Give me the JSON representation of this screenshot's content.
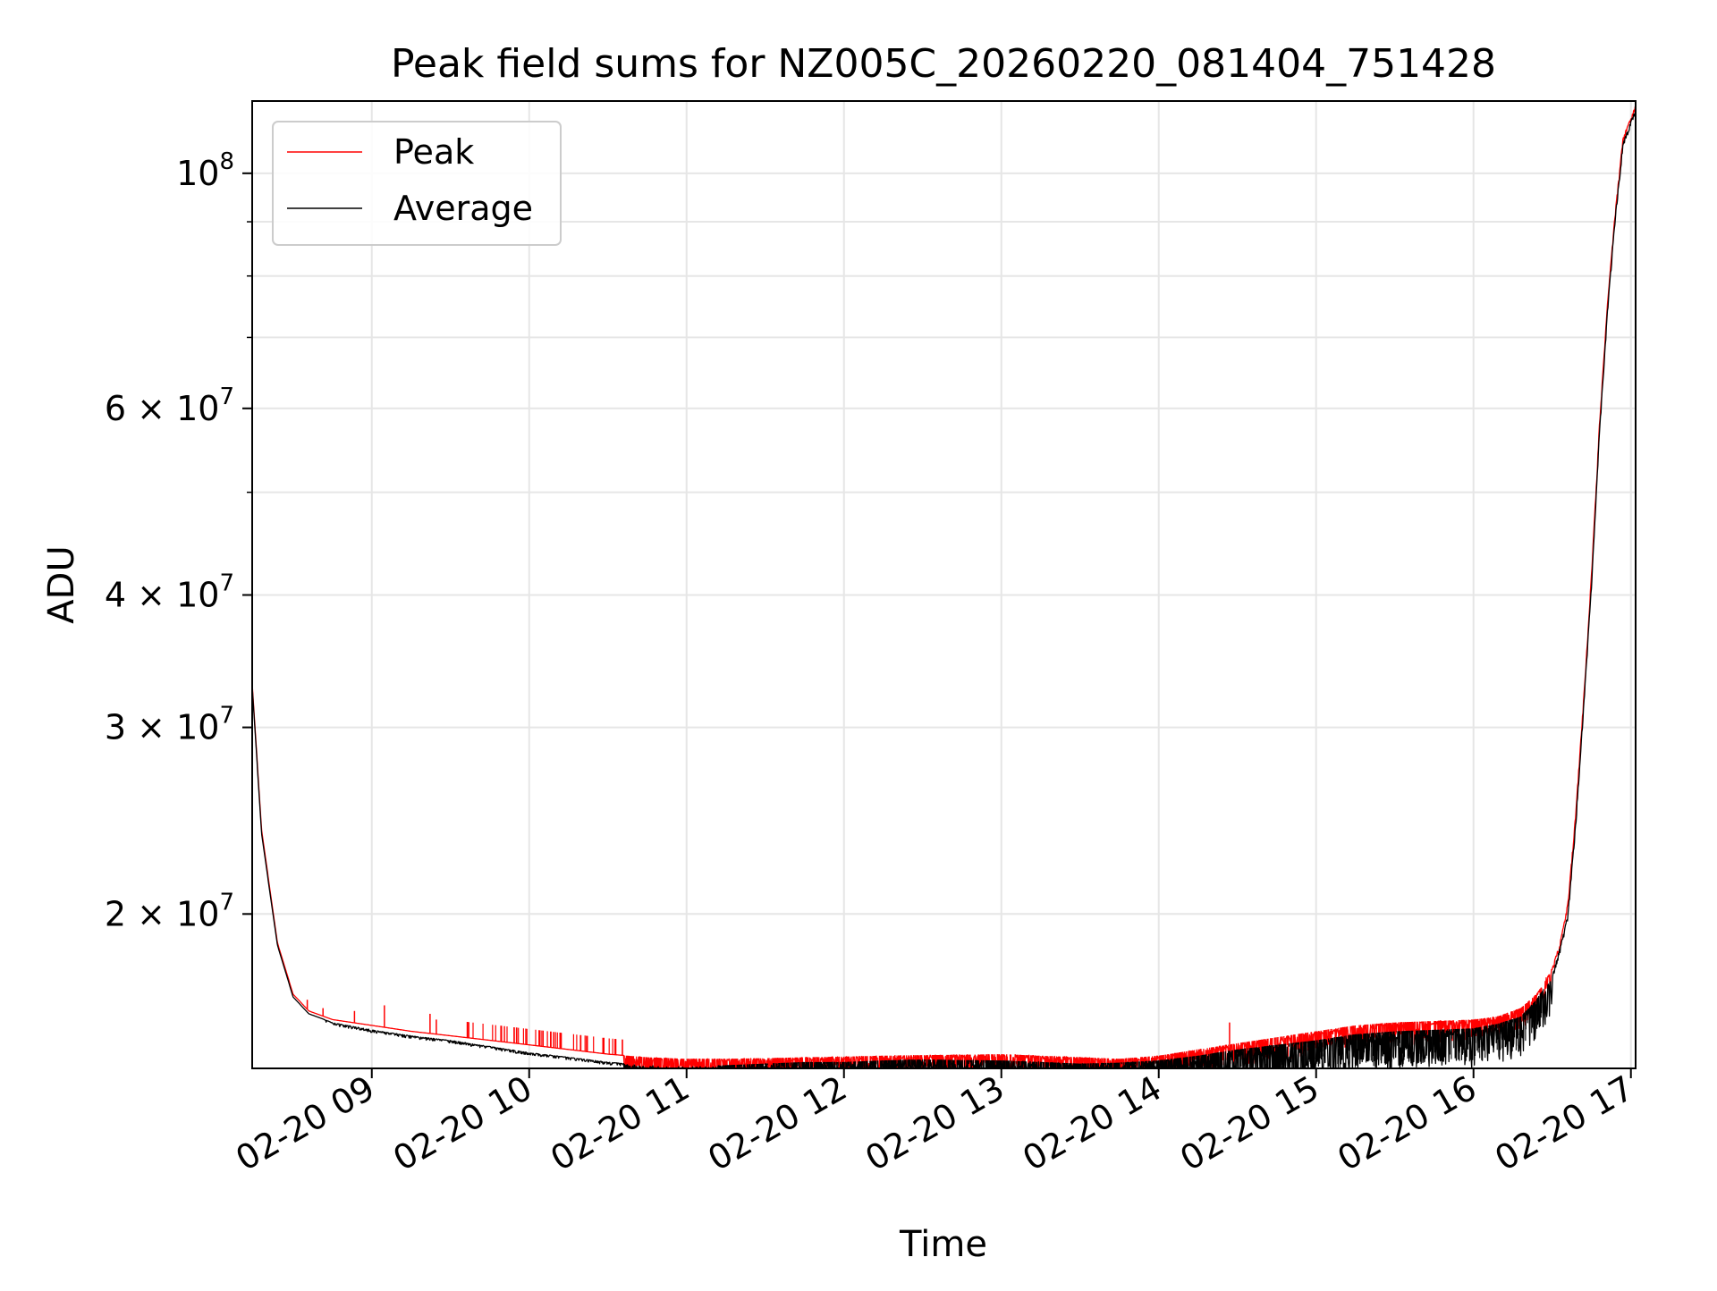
{
  "chart_data": {
    "type": "line",
    "title": "Peak field sums for NZ005C_20260220_081404_751428",
    "xlabel": "Time",
    "ylabel": "ADU",
    "yscale": "log",
    "xlim": [
      8.24,
      17.03
    ],
    "ylim": [
      14300000,
      117000000
    ],
    "grid": true,
    "legend_position": "upper-left",
    "x_ticks": [
      {
        "value": 9,
        "label": "02-20 09"
      },
      {
        "value": 10,
        "label": "02-20 10"
      },
      {
        "value": 11,
        "label": "02-20 11"
      },
      {
        "value": 12,
        "label": "02-20 12"
      },
      {
        "value": 13,
        "label": "02-20 13"
      },
      {
        "value": 14,
        "label": "02-20 14"
      },
      {
        "value": 15,
        "label": "02-20 15"
      },
      {
        "value": 16,
        "label": "02-20 16"
      },
      {
        "value": 17,
        "label": "02-20 17"
      }
    ],
    "y_ticks": [
      {
        "value": 20000000,
        "label_base": "2 × 10",
        "label_exp": "7"
      },
      {
        "value": 30000000,
        "label_base": "3 × 10",
        "label_exp": "7"
      },
      {
        "value": 40000000,
        "label_base": "4 × 10",
        "label_exp": "7"
      },
      {
        "value": 60000000,
        "label_base": "6 × 10",
        "label_exp": "7"
      },
      {
        "value": 100000000,
        "label_base": "10",
        "label_exp": "8"
      }
    ],
    "y_minor_ticks": [
      50000000,
      70000000,
      80000000,
      90000000
    ],
    "series": [
      {
        "name": "Peak",
        "color": "#ff0000",
        "noise": "dips",
        "x": [
          8.24,
          8.3,
          8.4,
          8.5,
          8.6,
          8.75,
          9.0,
          9.25,
          9.5,
          9.75,
          10.0,
          10.25,
          10.5,
          10.75,
          11.0,
          11.25,
          11.5,
          11.75,
          12.0,
          12.25,
          12.5,
          12.75,
          13.0,
          13.25,
          13.5,
          13.75,
          14.0,
          14.25,
          14.5,
          14.75,
          15.0,
          15.25,
          15.5,
          15.75,
          16.0,
          16.15,
          16.3,
          16.4,
          16.5,
          16.55,
          16.6,
          16.65,
          16.7,
          16.75,
          16.8,
          16.85,
          16.9,
          16.95,
          17.0,
          17.03
        ],
        "y": [
          33000000,
          24000000,
          18800000,
          16800000,
          16200000,
          15900000,
          15700000,
          15500000,
          15350000,
          15200000,
          15050000,
          14900000,
          14750000,
          14650000,
          14600000,
          14600000,
          14620000,
          14650000,
          14670000,
          14700000,
          14720000,
          14730000,
          14750000,
          14700000,
          14650000,
          14600000,
          14700000,
          14900000,
          15100000,
          15300000,
          15500000,
          15700000,
          15800000,
          15850000,
          15900000,
          16000000,
          16300000,
          16800000,
          17800000,
          18800000,
          20500000,
          25000000,
          32000000,
          42000000,
          58000000,
          75000000,
          92000000,
          108000000,
          113000000,
          116000000
        ],
        "spikes": [
          {
            "x": 8.59,
            "y": 16600000
          },
          {
            "x": 8.69,
            "y": 16300000
          },
          {
            "x": 8.89,
            "y": 16200000
          },
          {
            "x": 9.08,
            "y": 16400000
          },
          {
            "x": 9.37,
            "y": 16100000
          },
          {
            "x": 9.41,
            "y": 15900000
          },
          {
            "x": 14.45,
            "y": 15800000
          }
        ]
      },
      {
        "name": "Average",
        "color": "#000000",
        "noise": "dips",
        "x": [
          8.24,
          8.3,
          8.4,
          8.5,
          8.6,
          8.75,
          9.0,
          9.25,
          9.5,
          9.75,
          10.0,
          10.25,
          10.5,
          10.75,
          11.0,
          11.25,
          11.5,
          11.75,
          12.0,
          12.25,
          12.5,
          12.75,
          13.0,
          13.25,
          13.5,
          13.75,
          14.0,
          14.25,
          14.5,
          14.75,
          15.0,
          15.25,
          15.5,
          15.75,
          16.0,
          16.15,
          16.3,
          16.4,
          16.5,
          16.55,
          16.6,
          16.65,
          16.7,
          16.75,
          16.8,
          16.85,
          16.9,
          16.95,
          17.0,
          17.03
        ],
        "y": [
          32800000,
          23800000,
          18700000,
          16700000,
          16100000,
          15800000,
          15550000,
          15350000,
          15200000,
          15000000,
          14800000,
          14650000,
          14500000,
          14400000,
          14350000,
          14400000,
          14450000,
          14500000,
          14500000,
          14550000,
          14580000,
          14560000,
          14550000,
          14500000,
          14450000,
          14480000,
          14550000,
          14700000,
          14900000,
          15050000,
          15200000,
          15400000,
          15500000,
          15550000,
          15600000,
          15750000,
          16000000,
          16600000,
          17500000,
          18600000,
          20000000,
          24500000,
          31500000,
          41000000,
          57000000,
          74000000,
          91000000,
          107000000,
          112000000,
          115000000
        ],
        "spikes": []
      }
    ]
  }
}
